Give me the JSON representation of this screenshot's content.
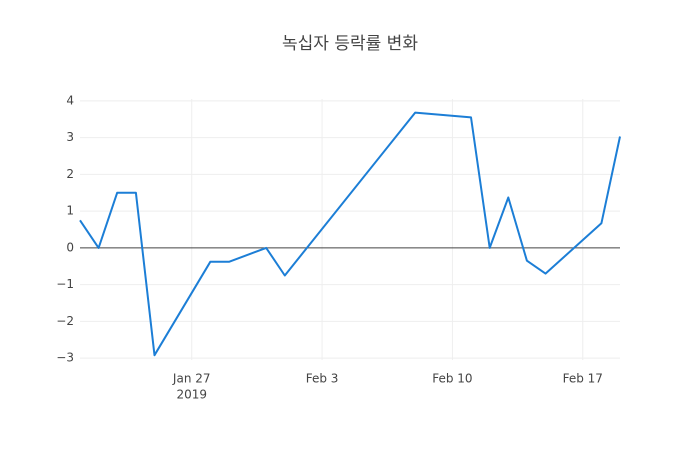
{
  "chart_data": {
    "type": "line",
    "title": "녹십자 등락률 변화",
    "x": [
      "2019-01-21",
      "2019-01-22",
      "2019-01-23",
      "2019-01-24",
      "2019-01-25",
      "2019-01-28",
      "2019-01-29",
      "2019-01-31",
      "2019-02-01",
      "2019-02-08",
      "2019-02-11",
      "2019-02-12",
      "2019-02-13",
      "2019-02-14",
      "2019-02-15",
      "2019-02-18",
      "2019-02-19"
    ],
    "series": [
      {
        "color": "#1c7ed6",
        "values": [
          0.75,
          0,
          1.5,
          1.5,
          -2.92,
          -0.38,
          -0.38,
          0,
          -0.75,
          3.68,
          3.55,
          0,
          1.37,
          -0.35,
          -0.7,
          0.67,
          3.03
        ]
      }
    ],
    "xlim": [
      "2019-01-21",
      "2019-02-19"
    ],
    "xticks": [
      {
        "value": "2019-01-27",
        "label": "Jan 27"
      },
      {
        "value": "2019-02-03",
        "label": "Feb 3"
      },
      {
        "value": "2019-02-10",
        "label": "Feb 10"
      },
      {
        "value": "2019-02-17",
        "label": "Feb 17"
      }
    ],
    "x_year": "2019",
    "ylim": [
      -3.05,
      4.05
    ],
    "yticks": [
      {
        "value": -3,
        "label": "−3"
      },
      {
        "value": -2,
        "label": "−2"
      },
      {
        "value": -1,
        "label": "−1"
      },
      0,
      1,
      2,
      3,
      4
    ],
    "grid": true,
    "zeroline": true
  }
}
